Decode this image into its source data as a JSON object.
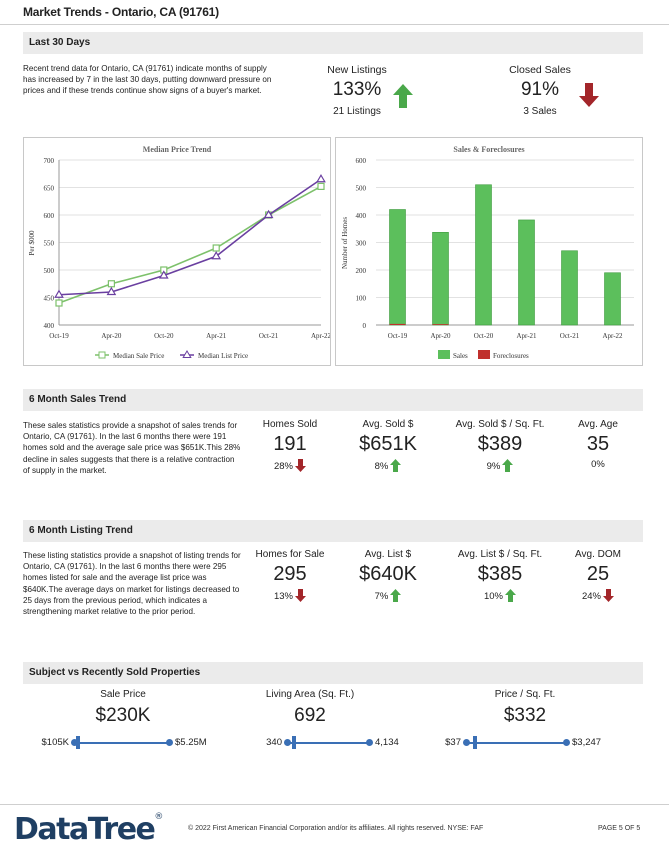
{
  "header": {
    "title": "Market Trends - Ontario, CA (91761)"
  },
  "last30": {
    "section_title": "Last 30 Days",
    "description": "Recent trend data for Ontario, CA (91761) indicate months of supply has increased by 7 in the last 30 days, putting downward pressure on prices and if these trends continue show signs of a buyer's market.",
    "new_listings": {
      "label": "New Listings",
      "value": "133%",
      "sub": "21 Listings",
      "direction": "up"
    },
    "closed_sales": {
      "label": "Closed Sales",
      "value": "91%",
      "sub": "3 Sales",
      "direction": "down"
    }
  },
  "colors": {
    "up": "#4aa84a",
    "down": "#a3262a",
    "accent": "#3a6fb5",
    "sales_bar": "#5cbf5c",
    "foreclosure_bar": "#c0302c",
    "sale_line": "#7dc16b",
    "list_line": "#6a3fa0"
  },
  "chart_data": [
    {
      "type": "line",
      "title": "Median Price Trend",
      "ylabel": "Per $000",
      "categories": [
        "Oct-19",
        "Apr-20",
        "Oct-20",
        "Apr-21",
        "Oct-21",
        "Apr-22"
      ],
      "ylim": [
        400,
        700
      ],
      "yticks": [
        "700",
        "650",
        "600",
        "550",
        "500",
        "450",
        "400"
      ],
      "series": [
        {
          "name": "Median Sale Price",
          "values": [
            440,
            475,
            500,
            540,
            600,
            652
          ]
        },
        {
          "name": "Median List Price",
          "values": [
            455,
            460,
            490,
            525,
            600,
            665
          ]
        }
      ],
      "legend": "bottom"
    },
    {
      "type": "bar",
      "title": "Sales & Foreclosures",
      "ylabel": "Number of Homes",
      "categories": [
        "Oct-19",
        "Apr-20",
        "Oct-20",
        "Apr-21",
        "Oct-21",
        "Apr-22"
      ],
      "ylim": [
        0,
        600
      ],
      "yticks": [
        "600",
        "500",
        "400",
        "300",
        "200",
        "100",
        "0"
      ],
      "series": [
        {
          "name": "Sales",
          "values": [
            420,
            337,
            510,
            382,
            270,
            190
          ]
        },
        {
          "name": "Foreclosures",
          "values": [
            4,
            3,
            0,
            0,
            0,
            0
          ]
        }
      ],
      "legend": "bottom"
    }
  ],
  "sales_trend": {
    "section_title": "6 Month Sales Trend",
    "description": "These sales statistics provide a snapshot of sales trends for Ontario, CA (91761). In the last 6 months there were 191 homes sold and the average sale price was $651K.This 28% decline in sales suggests that there is a relative contraction of supply in the market.",
    "stats": [
      {
        "label": "Homes Sold",
        "value": "191",
        "change": "28%",
        "direction": "down"
      },
      {
        "label": "Avg. Sold $",
        "value": "$651K",
        "change": "8%",
        "direction": "up"
      },
      {
        "label": "Avg. Sold $ / Sq. Ft.",
        "value": "$389",
        "change": "9%",
        "direction": "up"
      },
      {
        "label": "Avg. Age",
        "value": "35",
        "change": "0%",
        "direction": "none"
      }
    ]
  },
  "listing_trend": {
    "section_title": "6 Month Listing Trend",
    "description": "These listing statistics provide a snapshot of listing trends for Ontario, CA (91761). In the last 6 months there were 295 homes listed for sale and the average list price was $640K.The average days on market for listings decreased to 25 days from the previous period, which indicates a strengthening market relative to the prior period.",
    "stats": [
      {
        "label": "Homes for Sale",
        "value": "295",
        "change": "13%",
        "direction": "down"
      },
      {
        "label": "Avg. List $",
        "value": "$640K",
        "change": "7%",
        "direction": "up"
      },
      {
        "label": "Avg. List $ / Sq. Ft.",
        "value": "$385",
        "change": "10%",
        "direction": "up"
      },
      {
        "label": "Avg. DOM",
        "value": "25",
        "change": "24%",
        "direction": "down"
      }
    ]
  },
  "subject": {
    "section_title": "Subject vs Recently Sold Properties",
    "items": [
      {
        "label": "Sale Price",
        "value": "$230K",
        "min": "$105K",
        "max": "$5.25M",
        "position": 0.04
      },
      {
        "label": "Living Area (Sq. Ft.)",
        "value": "692",
        "min": "340",
        "max": "4,134",
        "position": 0.09
      },
      {
        "label": "Price / Sq. Ft.",
        "value": "$332",
        "min": "$37",
        "max": "$3,247",
        "position": 0.09
      }
    ]
  },
  "footer": {
    "logo": "DataTree",
    "logo_mark": "®",
    "copyright": "© 2022 First American Financial Corporation and/or its affiliates. All rights reserved. NYSE: FAF",
    "page": "PAGE 5 OF 5"
  }
}
